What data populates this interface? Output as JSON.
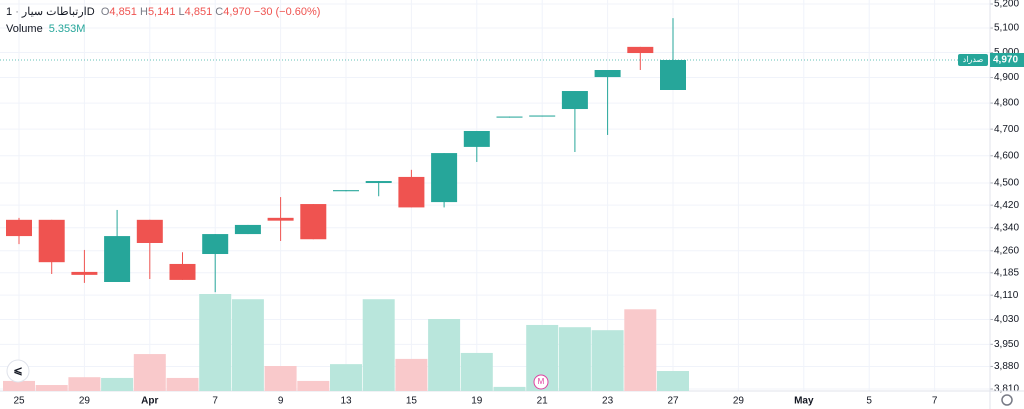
{
  "header": {
    "symbol": "ارتباطات سیار",
    "interval": "1D",
    "open_label": "O",
    "open": "4,851",
    "high_label": "H",
    "high": "5,141",
    "low_label": "L",
    "low": "4,851",
    "close_label": "C",
    "close": "4,970",
    "change": "−30 (−0.60%)",
    "volume_label": "Volume",
    "volume_last": "5.353M",
    "marker": "M"
  },
  "chart_data": {
    "type": "candlestick",
    "categories": [
      "25",
      null,
      "29",
      null,
      "Apr",
      null,
      "7",
      null,
      "9",
      null,
      "13",
      null,
      "15",
      null,
      "19",
      null,
      "21",
      null,
      "23",
      null,
      "27",
      null,
      "29",
      null,
      "May",
      null,
      "5",
      null,
      "7"
    ],
    "open": [
      4368,
      4368,
      4188,
      4154,
      4368,
      4215,
      4249,
      4318,
      4375,
      4424,
      4470,
      4500,
      4522,
      4431,
      4633,
      4744,
      4748,
      4777,
      4902,
      5023,
      4851,
      null,
      null,
      null,
      null,
      null,
      null,
      null,
      null
    ],
    "high": [
      4375,
      4368,
      4263,
      4403,
      4368,
      4255,
      4318,
      4350,
      4449,
      4424,
      4474,
      4507,
      4548,
      4610,
      4693,
      4748,
      4752,
      4847,
      4930,
      5023,
      5141,
      null,
      null,
      null,
      null,
      null,
      null,
      null,
      null
    ],
    "low": [
      4283,
      4181,
      4151,
      4154,
      4164,
      4161,
      4120,
      4318,
      4294,
      4300,
      4470,
      4452,
      4412,
      4412,
      4577,
      4744,
      4748,
      4614,
      4678,
      4930,
      4851,
      null,
      null,
      null,
      null,
      null,
      null,
      null,
      null
    ],
    "close": [
      4311,
      4221,
      4178,
      4311,
      4287,
      4161,
      4318,
      4350,
      4365,
      4300,
      4474,
      4507,
      4412,
      4610,
      4693,
      4748,
      4752,
      4847,
      4930,
      4998,
      4970,
      null,
      null,
      null,
      null,
      null,
      null,
      null,
      null
    ],
    "volume": [
      2.7,
      1.6,
      3.7,
      3.5,
      9.9,
      3.5,
      26.0,
      24.6,
      6.7,
      2.7,
      7.2,
      24.6,
      8.6,
      19.3,
      10.2,
      1.1,
      17.7,
      17.1,
      16.3,
      21.9,
      5.353,
      null,
      null,
      null,
      null,
      null,
      null,
      null,
      null
    ],
    "up_color": "#26a69a",
    "down_color": "#ef5350",
    "volume_up_color": "#b9e6dc",
    "volume_down_color": "#f9c9cb",
    "log_scale": true,
    "grid": true,
    "ylim": [
      3810,
      5200
    ],
    "yticks": [
      {
        "value": 5200,
        "label": "5,200"
      },
      {
        "value": 5100,
        "label": "5,100"
      },
      {
        "value": 5000,
        "label": "5,000"
      },
      {
        "value": 4900,
        "label": "4,900"
      },
      {
        "value": 4800,
        "label": "4,800"
      },
      {
        "value": 4700,
        "label": "4,700"
      },
      {
        "value": 4600,
        "label": "4,600"
      },
      {
        "value": 4500,
        "label": "4,500"
      },
      {
        "value": 4420,
        "label": "4,420"
      },
      {
        "value": 4340,
        "label": "4,340"
      },
      {
        "value": 4260,
        "label": "4,260"
      },
      {
        "value": 4185,
        "label": "4,185"
      },
      {
        "value": 4110,
        "label": "4,110"
      },
      {
        "value": 4030,
        "label": "4,030"
      },
      {
        "value": 3950,
        "label": "3,950"
      },
      {
        "value": 3880,
        "label": "3,880"
      },
      {
        "value": 3810,
        "label": "3,810"
      }
    ],
    "last_price": {
      "value": 4970,
      "label": "4,970"
    },
    "last_price_tag": "صدراد"
  }
}
